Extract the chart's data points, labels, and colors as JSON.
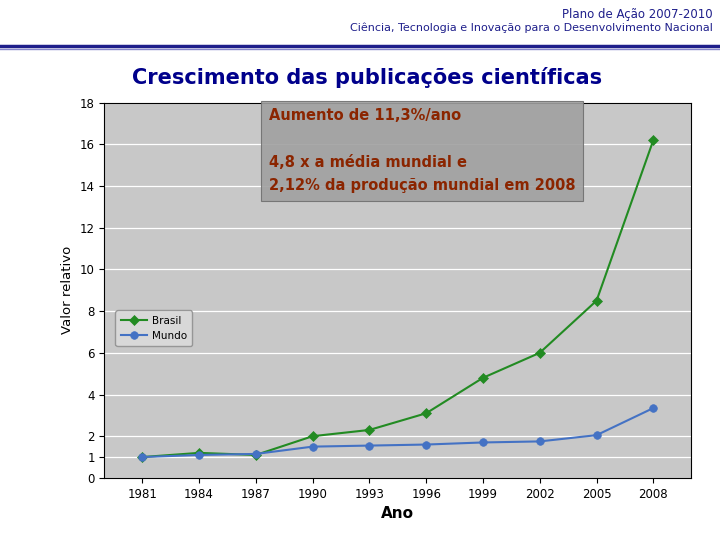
{
  "title_header_line1": "Plano de Ação 2007-2010",
  "title_header_line2": "Ciência, Tecnologia e Inovação para o Desenvolvimento Nacional",
  "chart_title": "Crescimento das publicações científicas",
  "xlabel": "Ano",
  "ylabel": "Valor relativo",
  "anos": [
    1981,
    1984,
    1987,
    1990,
    1993,
    1996,
    1999,
    2002,
    2005,
    2008
  ],
  "brasil": [
    1.0,
    1.2,
    1.1,
    2.0,
    2.3,
    3.1,
    4.8,
    6.0,
    8.5,
    16.2
  ],
  "mundo": [
    1.0,
    1.1,
    1.15,
    1.5,
    1.55,
    1.6,
    1.7,
    1.75,
    2.05,
    3.35
  ],
  "brasil_color": "#228B22",
  "mundo_color": "#4472C4",
  "brasil_label": "Brasil",
  "mundo_label": "Mundo",
  "ylim": [
    0,
    18
  ],
  "yticks": [
    0,
    1,
    2,
    4,
    6,
    8,
    10,
    12,
    14,
    16,
    18
  ],
  "annotation_text1": "Aumento de 11,3%/ano",
  "annotation_text2": "4,8 x a média mundial e\n2,12% da produção mundial em 2008",
  "annotation_color": "#8B2500",
  "annotation_bg": "#A0A0A0",
  "plot_bg": "#C8C8C8",
  "title_box_bg": "#CCFF99",
  "title_color": "#00008B",
  "header_color1": "#1F1F8B",
  "header_color2": "#1F1F8B",
  "separator_color": "#1F1F8B",
  "fig_bg": "#FFFFFF",
  "outer_border_color": "#808080"
}
